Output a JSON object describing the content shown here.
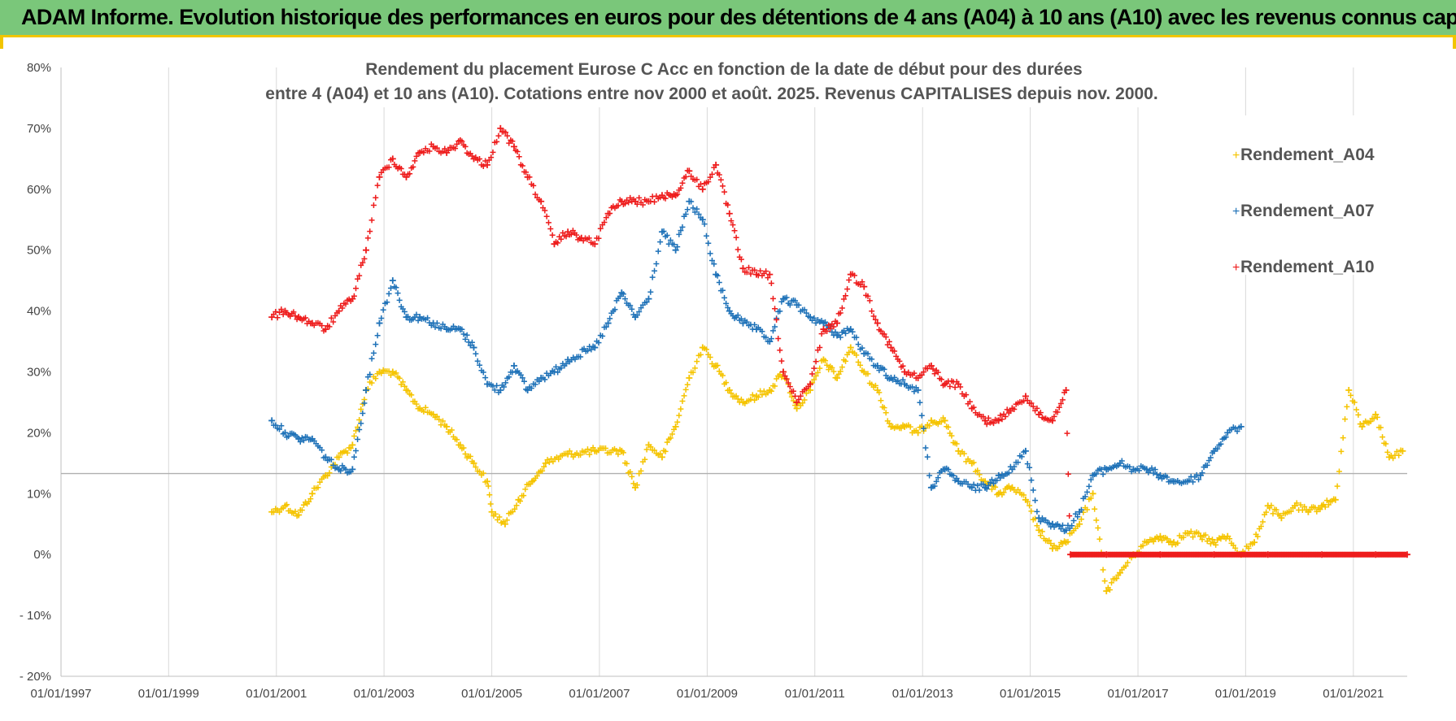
{
  "banner": {
    "title": "ADAM Informe. Evolution historique des performances en euros pour des détentions de 4 ans (A04) à 10 ans (A10) avec les revenus connus capitalisés",
    "background": "#7ac77a",
    "accent": "#f2c500"
  },
  "chart_data": {
    "type": "scatter",
    "title_lines": [
      "Rendement du placement Eurose C Acc en fonction de la date de début pour des durées",
      "entre 4 (A04) et 10 ans (A10). Cotations entre nov 2000 et août. 2025. Revenus CAPITALISES depuis nov. 2000."
    ],
    "xlabel": "",
    "ylabel": "",
    "x_axis": {
      "type": "date",
      "range": [
        "1997-01-01",
        "2022-01-01"
      ],
      "ticks": [
        "01/01/1997",
        "01/01/1999",
        "01/01/2001",
        "01/01/2003",
        "01/01/2005",
        "01/01/2007",
        "01/01/2009",
        "01/01/2011",
        "01/01/2013",
        "01/01/2015",
        "01/01/2017",
        "01/01/2019",
        "01/01/2021"
      ]
    },
    "y_axis": {
      "range": [
        -0.2,
        0.8
      ],
      "ticks": [
        "80%",
        "70%",
        "60%",
        "50%",
        "40%",
        "30%",
        "20%",
        "10%",
        "0%",
        "- 10%",
        "- 20%"
      ]
    },
    "grid": "vertical",
    "reference_line": 0.133,
    "legend": {
      "placement": "top-right"
    },
    "marker": "+",
    "series": [
      {
        "name": "Rendement_A04",
        "color": "#f5c400",
        "points": [
          [
            "2000-12-01",
            0.07
          ],
          [
            "2001-03-01",
            0.08
          ],
          [
            "2001-06-01",
            0.065
          ],
          [
            "2001-09-01",
            0.1
          ],
          [
            "2001-12-01",
            0.13
          ],
          [
            "2002-03-01",
            0.16
          ],
          [
            "2002-06-01",
            0.18
          ],
          [
            "2002-09-01",
            0.27
          ],
          [
            "2002-12-01",
            0.3
          ],
          [
            "2003-03-01",
            0.3
          ],
          [
            "2003-06-01",
            0.27
          ],
          [
            "2003-09-01",
            0.24
          ],
          [
            "2003-12-01",
            0.23
          ],
          [
            "2004-03-01",
            0.21
          ],
          [
            "2004-06-01",
            0.18
          ],
          [
            "2004-09-01",
            0.15
          ],
          [
            "2004-12-01",
            0.12
          ],
          [
            "2005-01-01",
            0.07
          ],
          [
            "2005-04-01",
            0.05
          ],
          [
            "2005-07-01",
            0.09
          ],
          [
            "2005-10-01",
            0.12
          ],
          [
            "2006-01-01",
            0.15
          ],
          [
            "2006-06-01",
            0.165
          ],
          [
            "2006-12-01",
            0.17
          ],
          [
            "2007-06-01",
            0.17
          ],
          [
            "2007-09-01",
            0.11
          ],
          [
            "2007-12-01",
            0.18
          ],
          [
            "2008-03-01",
            0.16
          ],
          [
            "2008-06-01",
            0.21
          ],
          [
            "2008-09-01",
            0.29
          ],
          [
            "2008-12-01",
            0.34
          ],
          [
            "2009-03-01",
            0.31
          ],
          [
            "2009-06-01",
            0.27
          ],
          [
            "2009-09-01",
            0.25
          ],
          [
            "2009-12-01",
            0.26
          ],
          [
            "2010-03-01",
            0.27
          ],
          [
            "2010-06-01",
            0.3
          ],
          [
            "2010-09-01",
            0.24
          ],
          [
            "2010-12-01",
            0.27
          ],
          [
            "2011-03-01",
            0.32
          ],
          [
            "2011-06-01",
            0.29
          ],
          [
            "2011-09-01",
            0.34
          ],
          [
            "2011-12-01",
            0.3
          ],
          [
            "2012-03-01",
            0.27
          ],
          [
            "2012-06-01",
            0.21
          ],
          [
            "2012-09-01",
            0.21
          ],
          [
            "2012-12-01",
            0.2
          ],
          [
            "2013-03-01",
            0.22
          ],
          [
            "2013-06-01",
            0.22
          ],
          [
            "2013-09-01",
            0.17
          ],
          [
            "2013-12-01",
            0.15
          ],
          [
            "2014-03-01",
            0.12
          ],
          [
            "2014-06-01",
            0.1
          ],
          [
            "2014-09-01",
            0.11
          ],
          [
            "2014-12-01",
            0.09
          ],
          [
            "2015-03-01",
            0.04
          ],
          [
            "2015-06-01",
            0.01
          ],
          [
            "2015-09-01",
            0.02
          ],
          [
            "2015-12-01",
            0.05
          ],
          [
            "2016-03-01",
            0.1
          ],
          [
            "2016-06-01",
            -0.06
          ],
          [
            "2016-09-01",
            -0.03
          ],
          [
            "2016-12-01",
            0.0
          ],
          [
            "2017-03-01",
            0.02
          ],
          [
            "2017-06-01",
            0.03
          ],
          [
            "2017-09-01",
            0.02
          ],
          [
            "2017-12-01",
            0.035
          ],
          [
            "2018-03-01",
            0.03
          ],
          [
            "2018-06-01",
            0.02
          ],
          [
            "2018-09-01",
            0.03
          ],
          [
            "2018-12-01",
            0.0
          ],
          [
            "2019-03-01",
            0.02
          ],
          [
            "2019-06-01",
            0.08
          ],
          [
            "2019-09-01",
            0.06
          ],
          [
            "2019-12-01",
            0.08
          ],
          [
            "2020-03-01",
            0.07
          ],
          [
            "2020-06-01",
            0.08
          ],
          [
            "2020-09-01",
            0.09
          ],
          [
            "2020-12-01",
            0.27
          ],
          [
            "2021-03-01",
            0.21
          ],
          [
            "2021-06-01",
            0.23
          ],
          [
            "2021-09-01",
            0.16
          ],
          [
            "2021-12-01",
            0.17
          ]
        ]
      },
      {
        "name": "Rendement_A07",
        "color": "#1f72b8",
        "points": [
          [
            "2000-12-01",
            0.22
          ],
          [
            "2001-03-01",
            0.2
          ],
          [
            "2001-06-01",
            0.19
          ],
          [
            "2001-09-01",
            0.19
          ],
          [
            "2001-12-01",
            0.16
          ],
          [
            "2002-03-01",
            0.14
          ],
          [
            "2002-06-01",
            0.14
          ],
          [
            "2002-09-01",
            0.27
          ],
          [
            "2002-12-01",
            0.38
          ],
          [
            "2003-03-01",
            0.45
          ],
          [
            "2003-06-01",
            0.39
          ],
          [
            "2003-09-01",
            0.39
          ],
          [
            "2003-12-01",
            0.38
          ],
          [
            "2004-03-01",
            0.37
          ],
          [
            "2004-06-01",
            0.37
          ],
          [
            "2004-09-01",
            0.34
          ],
          [
            "2004-12-01",
            0.28
          ],
          [
            "2005-03-01",
            0.27
          ],
          [
            "2005-06-01",
            0.31
          ],
          [
            "2005-09-01",
            0.27
          ],
          [
            "2005-12-01",
            0.29
          ],
          [
            "2006-03-01",
            0.3
          ],
          [
            "2006-06-01",
            0.32
          ],
          [
            "2006-12-01",
            0.34
          ],
          [
            "2007-03-01",
            0.38
          ],
          [
            "2007-06-01",
            0.43
          ],
          [
            "2007-09-01",
            0.39
          ],
          [
            "2007-12-01",
            0.42
          ],
          [
            "2008-03-01",
            0.53
          ],
          [
            "2008-06-01",
            0.5
          ],
          [
            "2008-09-01",
            0.58
          ],
          [
            "2008-12-01",
            0.55
          ],
          [
            "2009-03-01",
            0.46
          ],
          [
            "2009-06-01",
            0.4
          ],
          [
            "2009-09-01",
            0.38
          ],
          [
            "2009-12-01",
            0.37
          ],
          [
            "2010-03-01",
            0.35
          ],
          [
            "2010-06-01",
            0.42
          ],
          [
            "2010-09-01",
            0.41
          ],
          [
            "2010-12-01",
            0.39
          ],
          [
            "2011-03-01",
            0.38
          ],
          [
            "2011-06-01",
            0.36
          ],
          [
            "2011-09-01",
            0.37
          ],
          [
            "2011-12-01",
            0.33
          ],
          [
            "2012-03-01",
            0.31
          ],
          [
            "2012-06-01",
            0.29
          ],
          [
            "2012-09-01",
            0.28
          ],
          [
            "2012-12-01",
            0.27
          ],
          [
            "2013-03-01",
            0.11
          ],
          [
            "2013-06-01",
            0.14
          ],
          [
            "2013-09-01",
            0.12
          ],
          [
            "2013-12-01",
            0.11
          ],
          [
            "2014-03-01",
            0.11
          ],
          [
            "2014-06-01",
            0.13
          ],
          [
            "2014-09-01",
            0.14
          ],
          [
            "2014-12-01",
            0.17
          ],
          [
            "2015-03-01",
            0.06
          ],
          [
            "2015-06-01",
            0.05
          ],
          [
            "2015-09-01",
            0.04
          ],
          [
            "2015-12-01",
            0.07
          ],
          [
            "2016-03-01",
            0.13
          ],
          [
            "2016-06-01",
            0.14
          ],
          [
            "2016-09-01",
            0.15
          ],
          [
            "2016-12-01",
            0.14
          ],
          [
            "2017-03-01",
            0.14
          ],
          [
            "2017-06-01",
            0.13
          ],
          [
            "2017-09-01",
            0.12
          ],
          [
            "2017-12-01",
            0.12
          ],
          [
            "2018-03-01",
            0.13
          ],
          [
            "2018-06-01",
            0.17
          ],
          [
            "2018-09-01",
            0.2
          ],
          [
            "2018-12-01",
            0.21
          ]
        ]
      },
      {
        "name": "Rendement_A10",
        "color": "#ee1c1c",
        "points": [
          [
            "2000-12-01",
            0.39
          ],
          [
            "2001-03-01",
            0.4
          ],
          [
            "2001-06-01",
            0.39
          ],
          [
            "2001-09-01",
            0.38
          ],
          [
            "2001-12-01",
            0.37
          ],
          [
            "2002-03-01",
            0.4
          ],
          [
            "2002-06-01",
            0.42
          ],
          [
            "2002-09-01",
            0.5
          ],
          [
            "2002-12-01",
            0.62
          ],
          [
            "2003-03-01",
            0.65
          ],
          [
            "2003-06-01",
            0.62
          ],
          [
            "2003-09-01",
            0.66
          ],
          [
            "2003-12-01",
            0.67
          ],
          [
            "2004-03-01",
            0.66
          ],
          [
            "2004-06-01",
            0.68
          ],
          [
            "2004-09-01",
            0.65
          ],
          [
            "2004-12-01",
            0.64
          ],
          [
            "2005-03-01",
            0.7
          ],
          [
            "2005-06-01",
            0.67
          ],
          [
            "2005-09-01",
            0.62
          ],
          [
            "2005-12-01",
            0.58
          ],
          [
            "2006-03-01",
            0.51
          ],
          [
            "2006-06-01",
            0.53
          ],
          [
            "2006-09-01",
            0.52
          ],
          [
            "2006-12-01",
            0.51
          ],
          [
            "2007-03-01",
            0.56
          ],
          [
            "2007-06-01",
            0.58
          ],
          [
            "2007-09-01",
            0.58
          ],
          [
            "2007-12-01",
            0.58
          ],
          [
            "2008-03-01",
            0.59
          ],
          [
            "2008-06-01",
            0.59
          ],
          [
            "2008-09-01",
            0.63
          ],
          [
            "2008-12-01",
            0.6
          ],
          [
            "2009-03-01",
            0.64
          ],
          [
            "2009-06-01",
            0.56
          ],
          [
            "2009-09-01",
            0.47
          ],
          [
            "2009-12-01",
            0.46
          ],
          [
            "2010-03-01",
            0.46
          ],
          [
            "2010-06-01",
            0.3
          ],
          [
            "2010-09-01",
            0.25
          ],
          [
            "2010-12-01",
            0.28
          ],
          [
            "2011-03-01",
            0.37
          ],
          [
            "2011-06-01",
            0.38
          ],
          [
            "2011-09-01",
            0.46
          ],
          [
            "2011-12-01",
            0.44
          ],
          [
            "2012-03-01",
            0.38
          ],
          [
            "2012-06-01",
            0.34
          ],
          [
            "2012-09-01",
            0.3
          ],
          [
            "2012-12-01",
            0.29
          ],
          [
            "2013-03-01",
            0.31
          ],
          [
            "2013-06-01",
            0.28
          ],
          [
            "2013-09-01",
            0.28
          ],
          [
            "2013-12-01",
            0.24
          ],
          [
            "2014-03-01",
            0.22
          ],
          [
            "2014-06-01",
            0.22
          ],
          [
            "2014-09-01",
            0.24
          ],
          [
            "2014-12-01",
            0.26
          ],
          [
            "2015-03-01",
            0.23
          ],
          [
            "2015-06-01",
            0.22
          ],
          [
            "2015-09-01",
            0.27
          ],
          [
            "2015-10-01",
            0.0
          ],
          [
            "2016-06-01",
            0.0
          ],
          [
            "2017-06-01",
            0.0
          ],
          [
            "2018-06-01",
            0.0
          ],
          [
            "2019-06-01",
            0.0
          ],
          [
            "2020-06-01",
            0.0
          ],
          [
            "2021-06-01",
            0.0
          ],
          [
            "2022-01-01",
            0.0
          ]
        ]
      }
    ]
  }
}
